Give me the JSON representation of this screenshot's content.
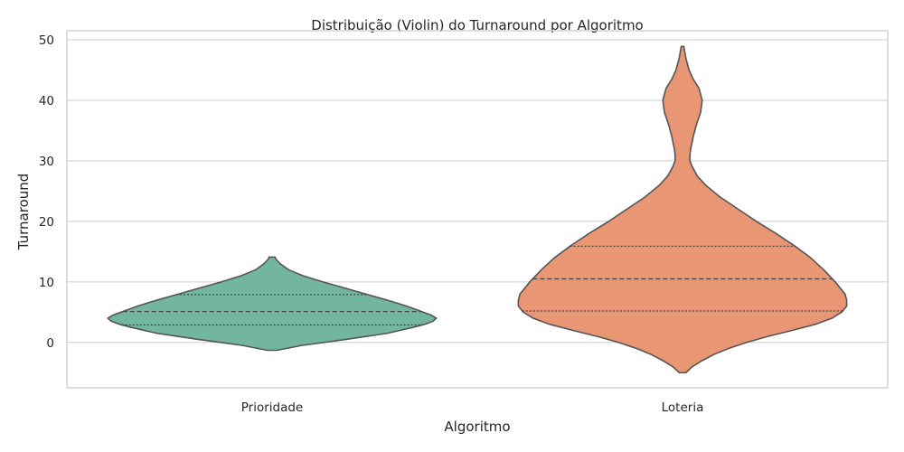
{
  "chart_data": {
    "type": "violin",
    "title": "Distribuição (Violin) do Turnaround por Algoritmo",
    "xlabel": "Algoritmo",
    "ylabel": "Turnaround",
    "ylim": [
      -7.5,
      51.5
    ],
    "yticks": [
      0,
      10,
      20,
      30,
      40,
      50
    ],
    "grid": true,
    "inner": "quartile",
    "violins": [
      {
        "category": "Prioridade",
        "color": "#73b69f",
        "min": -1.3,
        "max": 14.1,
        "q1": 2.9,
        "median": 5.1,
        "q3": 7.9,
        "density": [
          [
            -1.3,
            0.03
          ],
          [
            -0.5,
            0.18
          ],
          [
            0.5,
            0.45
          ],
          [
            1.5,
            0.7
          ],
          [
            2.5,
            0.86
          ],
          [
            3.0,
            0.93
          ],
          [
            3.5,
            0.98
          ],
          [
            4.0,
            1.0
          ],
          [
            4.5,
            0.97
          ],
          [
            5.0,
            0.92
          ],
          [
            6.0,
            0.82
          ],
          [
            7.0,
            0.7
          ],
          [
            8.0,
            0.57
          ],
          [
            9.0,
            0.44
          ],
          [
            10.0,
            0.31
          ],
          [
            11.0,
            0.19
          ],
          [
            12.0,
            0.1
          ],
          [
            13.0,
            0.05
          ],
          [
            13.7,
            0.025
          ],
          [
            14.1,
            0.018
          ]
        ]
      },
      {
        "category": "Loteria",
        "color": "#e99674",
        "min": -5.0,
        "max": 48.9,
        "q1": 5.2,
        "median": 10.5,
        "q3": 15.9,
        "density": [
          [
            -5.0,
            0.02
          ],
          [
            -4.0,
            0.06
          ],
          [
            -3.0,
            0.12
          ],
          [
            -2.0,
            0.19
          ],
          [
            -1.0,
            0.28
          ],
          [
            0.0,
            0.39
          ],
          [
            1.0,
            0.52
          ],
          [
            2.0,
            0.67
          ],
          [
            3.0,
            0.81
          ],
          [
            4.0,
            0.91
          ],
          [
            5.0,
            0.97
          ],
          [
            6.0,
            1.0
          ],
          [
            7.0,
            1.0
          ],
          [
            8.0,
            0.99
          ],
          [
            9.0,
            0.96
          ],
          [
            10.0,
            0.93
          ],
          [
            12.0,
            0.86
          ],
          [
            14.0,
            0.78
          ],
          [
            16.0,
            0.68
          ],
          [
            18.0,
            0.57
          ],
          [
            20.0,
            0.45
          ],
          [
            22.0,
            0.34
          ],
          [
            24.0,
            0.23
          ],
          [
            26.0,
            0.14
          ],
          [
            27.5,
            0.09
          ],
          [
            29.0,
            0.06
          ],
          [
            30.0,
            0.045
          ],
          [
            31.0,
            0.045
          ],
          [
            32.0,
            0.05
          ],
          [
            34.0,
            0.065
          ],
          [
            36.0,
            0.085
          ],
          [
            38.0,
            0.11
          ],
          [
            40.0,
            0.12
          ],
          [
            42.0,
            0.1
          ],
          [
            43.5,
            0.065
          ],
          [
            45.0,
            0.04
          ],
          [
            47.0,
            0.02
          ],
          [
            48.9,
            0.008
          ]
        ]
      }
    ]
  }
}
